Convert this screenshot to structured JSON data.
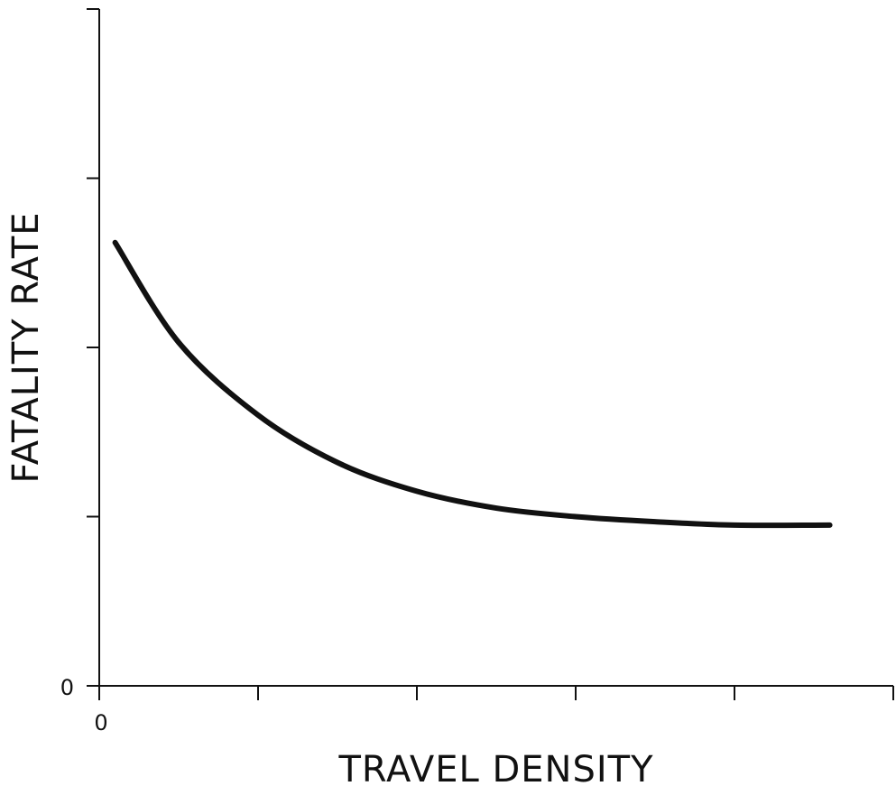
{
  "chart_data": {
    "type": "line",
    "title": "",
    "xlabel": "TRAVEL DENSITY",
    "ylabel": "FATALITY RATE",
    "x_tick_labels": [
      "0"
    ],
    "y_tick_labels": [
      "0"
    ],
    "xlim": [
      0,
      5
    ],
    "ylim": [
      0,
      4
    ],
    "grid": false,
    "x_ticks": [
      0,
      1,
      2,
      3,
      4,
      5
    ],
    "y_ticks": [
      0,
      1,
      2,
      3,
      4
    ],
    "series": [
      {
        "x": [
          0.1,
          0.5,
          1.0,
          1.5,
          2.0,
          2.5,
          3.0,
          3.5,
          4.0,
          4.6
        ],
        "values": [
          2.62,
          2.03,
          1.6,
          1.32,
          1.15,
          1.05,
          1.0,
          0.97,
          0.95,
          0.95
        ]
      }
    ]
  }
}
